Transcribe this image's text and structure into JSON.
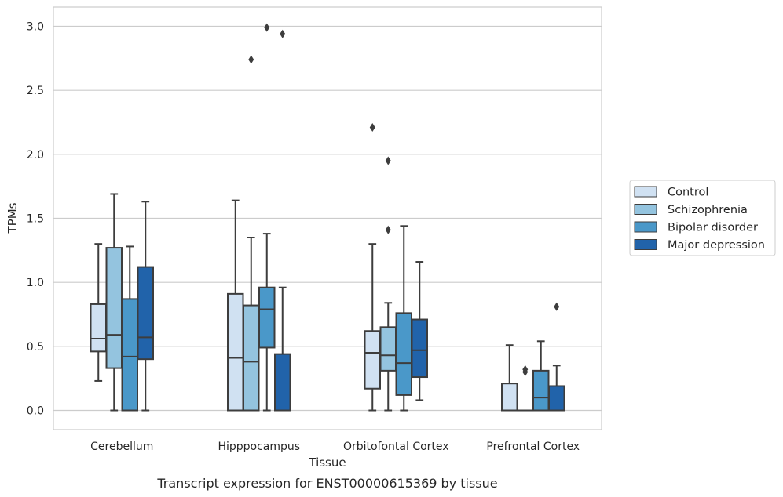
{
  "caption": "Transcript expression for ENST00000615369 by tissue",
  "chart_data": {
    "type": "box",
    "xlabel": "Tissue",
    "ylabel": "TPMs",
    "ylim": [
      -0.15,
      3.15
    ],
    "yticks": [
      "0.0",
      "0.5",
      "1.0",
      "1.5",
      "2.0",
      "2.5",
      "3.0"
    ],
    "grid": "horizontal",
    "legend_position": "right",
    "categories": [
      "Cerebellum",
      "Hipppocampus",
      "Orbitofontal Cortex",
      "Prefrontal Cortex"
    ],
    "series": [
      {
        "name": "Control",
        "color": "#d0e1f2",
        "boxes": [
          {
            "whislo": 0.23,
            "q1": 0.46,
            "med": 0.56,
            "q3": 0.83,
            "whishi": 1.3,
            "fliers": []
          },
          {
            "whislo": 0.0,
            "q1": 0.0,
            "med": 0.41,
            "q3": 0.91,
            "whishi": 1.64,
            "fliers": []
          },
          {
            "whislo": 0.0,
            "q1": 0.17,
            "med": 0.45,
            "q3": 0.62,
            "whishi": 1.3,
            "fliers": [
              2.21
            ]
          },
          {
            "whislo": 0.0,
            "q1": 0.0,
            "med": 0.0,
            "q3": 0.21,
            "whishi": 0.51,
            "fliers": []
          }
        ]
      },
      {
        "name": "Schizophrenia",
        "color": "#94c4df",
        "boxes": [
          {
            "whislo": 0.0,
            "q1": 0.33,
            "med": 0.59,
            "q3": 1.27,
            "whishi": 1.69,
            "fliers": []
          },
          {
            "whislo": 0.0,
            "q1": 0.0,
            "med": 0.38,
            "q3": 0.82,
            "whishi": 1.35,
            "fliers": [
              2.74
            ]
          },
          {
            "whislo": 0.0,
            "q1": 0.31,
            "med": 0.43,
            "q3": 0.65,
            "whishi": 0.84,
            "fliers": [
              1.41,
              1.95
            ]
          },
          {
            "whislo": 0.0,
            "q1": 0.0,
            "med": 0.0,
            "q3": 0.0,
            "whishi": 0.0,
            "fliers": [
              0.3,
              0.32
            ]
          }
        ]
      },
      {
        "name": "Bipolar disorder",
        "color": "#4a98c9",
        "boxes": [
          {
            "whislo": 0.0,
            "q1": 0.0,
            "med": 0.42,
            "q3": 0.87,
            "whishi": 1.28,
            "fliers": []
          },
          {
            "whislo": 0.0,
            "q1": 0.49,
            "med": 0.79,
            "q3": 0.96,
            "whishi": 1.38,
            "fliers": [
              2.99
            ]
          },
          {
            "whislo": 0.0,
            "q1": 0.12,
            "med": 0.37,
            "q3": 0.76,
            "whishi": 1.44,
            "fliers": []
          },
          {
            "whislo": 0.0,
            "q1": 0.0,
            "med": 0.1,
            "q3": 0.31,
            "whishi": 0.54,
            "fliers": []
          }
        ]
      },
      {
        "name": "Major depression",
        "color": "#2163aa",
        "boxes": [
          {
            "whislo": 0.0,
            "q1": 0.4,
            "med": 0.57,
            "q3": 1.12,
            "whishi": 1.63,
            "fliers": []
          },
          {
            "whislo": 0.0,
            "q1": 0.0,
            "med": 0.0,
            "q3": 0.44,
            "whishi": 0.96,
            "fliers": [
              2.94
            ]
          },
          {
            "whislo": 0.08,
            "q1": 0.26,
            "med": 0.47,
            "q3": 0.71,
            "whishi": 1.16,
            "fliers": []
          },
          {
            "whislo": 0.0,
            "q1": 0.0,
            "med": 0.0,
            "q3": 0.19,
            "whishi": 0.35,
            "fliers": [
              0.81
            ]
          }
        ]
      }
    ]
  }
}
